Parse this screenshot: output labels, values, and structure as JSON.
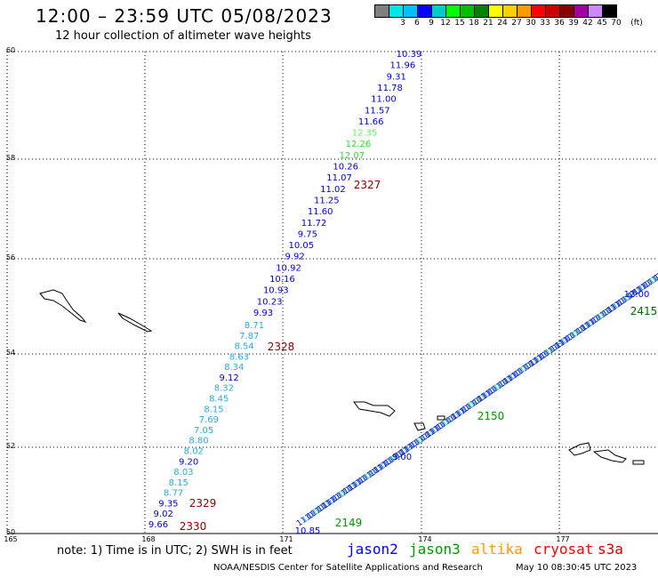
{
  "header": {
    "title": "12:00 – 23:59 UTC 05/08/2023",
    "subtitle": "12 hour collection of altimeter wave heights"
  },
  "legend": {
    "unit": "(ft)",
    "swatches": [
      {
        "label": "",
        "color": "#7f7f7f"
      },
      {
        "label": "3",
        "color": "#00e5e5"
      },
      {
        "label": "6",
        "color": "#00bfff"
      },
      {
        "label": "9",
        "color": "#0000ff"
      },
      {
        "label": "12",
        "color": "#00cccc"
      },
      {
        "label": "15",
        "color": "#00ff00"
      },
      {
        "label": "18",
        "color": "#00c000"
      },
      {
        "label": "21",
        "color": "#008000"
      },
      {
        "label": "24",
        "color": "#ffff00"
      },
      {
        "label": "27",
        "color": "#ffd000"
      },
      {
        "label": "30",
        "color": "#ff9900"
      },
      {
        "label": "33",
        "color": "#ff0000"
      },
      {
        "label": "36",
        "color": "#cc0000"
      },
      {
        "label": "39",
        "color": "#880000"
      },
      {
        "label": "42",
        "color": "#a000a0"
      },
      {
        "label": "45",
        "color": "#cc88ff"
      },
      {
        "label": "70",
        "color": "#000000"
      }
    ]
  },
  "axes": {
    "lat_labels": [
      "60",
      "58",
      "56",
      "54",
      "52",
      "50"
    ],
    "lon_labels": [
      "165",
      "168",
      "171",
      "174",
      "177"
    ]
  },
  "tracks": {
    "north": [
      {
        "v": "10.39",
        "c": "#0000cc"
      },
      {
        "v": "11.96",
        "c": "#0000cc"
      },
      {
        "v": "9.31",
        "c": "#0000cc"
      },
      {
        "v": "11.78",
        "c": "#0000cc"
      },
      {
        "v": "11.00",
        "c": "#0000cc"
      },
      {
        "v": "11.57",
        "c": "#0000cc"
      },
      {
        "v": "11.66",
        "c": "#0000cc"
      },
      {
        "v": "12.35",
        "c": "#66ee66"
      },
      {
        "v": "12.26",
        "c": "#33dd33"
      },
      {
        "v": "12.07",
        "c": "#33dd33"
      },
      {
        "v": "10.26",
        "c": "#0000cc"
      },
      {
        "v": "11.07",
        "c": "#0000cc"
      },
      {
        "v": "11.02",
        "c": "#0000cc"
      },
      {
        "v": "11.25",
        "c": "#0000cc"
      },
      {
        "v": "11.60",
        "c": "#0000cc"
      },
      {
        "v": "11.72",
        "c": "#0000cc"
      },
      {
        "v": "9.75",
        "c": "#0000cc"
      },
      {
        "v": "10.05",
        "c": "#0000cc"
      },
      {
        "v": "9.92",
        "c": "#0000cc"
      },
      {
        "v": "10.92",
        "c": "#0000cc"
      },
      {
        "v": "10.16",
        "c": "#0000cc"
      },
      {
        "v": "10.93",
        "c": "#0000cc"
      },
      {
        "v": "10.23",
        "c": "#0000cc"
      },
      {
        "v": "9.93",
        "c": "#0000cc"
      }
    ],
    "south": [
      {
        "v": "8.71",
        "c": "#2aaadd"
      },
      {
        "v": "7.87",
        "c": "#2aaadd"
      },
      {
        "v": "8.54",
        "c": "#2aaadd"
      },
      {
        "v": "8.63",
        "c": "#2aaadd"
      },
      {
        "v": "8.34",
        "c": "#2aaadd"
      },
      {
        "v": "9.12",
        "c": "#0000cc"
      },
      {
        "v": "8.32",
        "c": "#2aaadd"
      },
      {
        "v": "8.45",
        "c": "#2aaadd"
      },
      {
        "v": "8.15",
        "c": "#2aaadd"
      },
      {
        "v": "7.69",
        "c": "#2aaadd"
      },
      {
        "v": "7.05",
        "c": "#2aaadd"
      },
      {
        "v": "8.80",
        "c": "#2aaadd"
      },
      {
        "v": "8.02",
        "c": "#2aaadd"
      },
      {
        "v": "9.20",
        "c": "#0000cc"
      },
      {
        "v": "8.03",
        "c": "#2aaadd"
      },
      {
        "v": "8.15",
        "c": "#2aaadd"
      },
      {
        "v": "8.77",
        "c": "#2aaadd"
      },
      {
        "v": "9.35",
        "c": "#0000cc"
      },
      {
        "v": "9.02",
        "c": "#0000cc"
      },
      {
        "v": "9.66",
        "c": "#0000cc"
      }
    ],
    "times": [
      {
        "v": "2327",
        "c": "#880000"
      },
      {
        "v": "2328",
        "c": "#880000"
      },
      {
        "v": "2329",
        "c": "#880000"
      },
      {
        "v": "2330",
        "c": "#880000"
      }
    ],
    "diag": {
      "right_value": "12.00",
      "mid_value": "9.00",
      "bottom_value": "10.85",
      "right_time": "2415",
      "mid_time": "2150",
      "bottom_time": "2149"
    }
  },
  "footer": {
    "note": "note: 1) Time is in UTC; 2) SWH is in feet",
    "satellites": [
      {
        "name": "jason2",
        "color": "#0000ff"
      },
      {
        "name": "jason3",
        "color": "#009900"
      },
      {
        "name": "altika",
        "color": "#ff9900"
      },
      {
        "name": "cryosat",
        "color": "#ff0000"
      },
      {
        "name": "s3a",
        "color": "#cc0000"
      }
    ],
    "credit": "NOAA/NESDIS Center for Satellite Applications and Research",
    "timestamp": "May 10 08:30:45 UTC 2023"
  }
}
